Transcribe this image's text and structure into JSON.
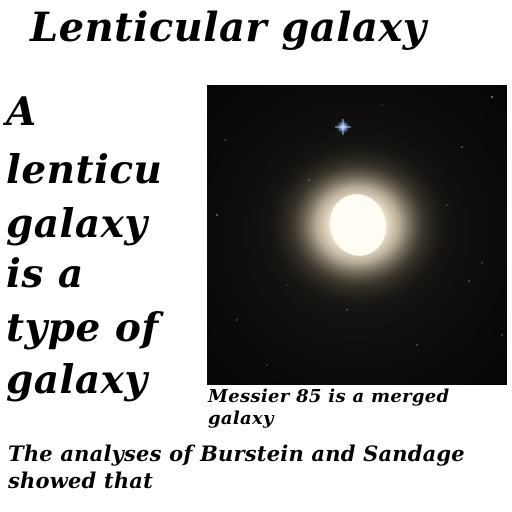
{
  "title": "Lenticular galaxy",
  "lead_lines": [
    "A",
    "lenticu",
    "galaxy",
    "is a",
    "type of",
    "galaxy"
  ],
  "image": {
    "icon": "galaxy-photo",
    "colors": {
      "background": "#0a0a0a",
      "core": "#fff8e8",
      "halo": "#c8b896",
      "star": "#9fc4ff"
    }
  },
  "caption": "Messier 85 is a merged galaxy",
  "body": "The analyses of Burstein and Sandage showed that"
}
